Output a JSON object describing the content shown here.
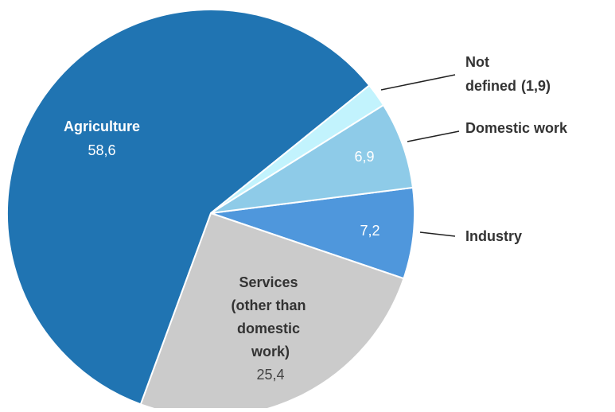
{
  "chart_data": {
    "type": "pie",
    "categories": [
      "Industry",
      "Services (other than domestic work)",
      "Agriculture",
      "Not defined",
      "Domestic work"
    ],
    "values": [
      7.2,
      25.4,
      58.6,
      1.9,
      6.9
    ],
    "value_labels": [
      "7,2",
      "25,4",
      "58,6",
      "(1,9)",
      "6,9"
    ],
    "colors": [
      "#4f97dc",
      "#cbcbcb",
      "#2074b2",
      "#c2f3fd",
      "#8ecbe8"
    ]
  }
}
